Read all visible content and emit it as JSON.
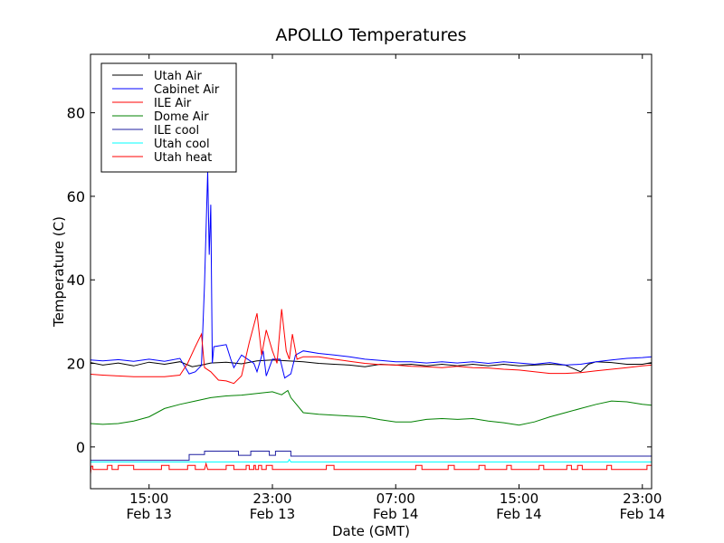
{
  "chart_data": {
    "type": "line",
    "title": "APOLLO Temperatures",
    "xlabel": "Date (GMT)",
    "ylabel": "Temperature (C)",
    "xlim": [
      11.2,
      47.6
    ],
    "ylim": [
      -10,
      94
    ],
    "yticks": [
      0,
      20,
      40,
      60,
      80
    ],
    "xticks": [
      {
        "x": 15,
        "line1": "15:00",
        "line2": "Feb 13"
      },
      {
        "x": 23,
        "line1": "23:00",
        "line2": "Feb 13"
      },
      {
        "x": 31,
        "line1": "07:00",
        "line2": "Feb 14"
      },
      {
        "x": 39,
        "line1": "15:00",
        "line2": "Feb 14"
      },
      {
        "x": 47,
        "line1": "23:00",
        "line2": "Feb 14"
      }
    ],
    "legend_position": "top-left",
    "grid": false,
    "series": [
      {
        "name": "Utah Air",
        "color": "#000000",
        "points": [
          [
            11.2,
            20.2
          ],
          [
            12,
            19.6
          ],
          [
            13,
            20.1
          ],
          [
            14,
            19.4
          ],
          [
            15,
            20.3
          ],
          [
            16,
            19.8
          ],
          [
            17,
            20.4
          ],
          [
            17.8,
            19.2
          ],
          [
            18.4,
            19.6
          ],
          [
            19,
            20.1
          ],
          [
            20,
            20.3
          ],
          [
            21,
            19.9
          ],
          [
            22,
            20.6
          ],
          [
            23,
            20.8
          ],
          [
            24,
            20.6
          ],
          [
            25,
            20.4
          ],
          [
            26,
            20.0
          ],
          [
            27,
            19.8
          ],
          [
            28,
            19.6
          ],
          [
            29,
            19.2
          ],
          [
            30,
            19.8
          ],
          [
            31,
            19.6
          ],
          [
            32,
            19.8
          ],
          [
            33,
            19.4
          ],
          [
            34,
            19.8
          ],
          [
            35,
            19.4
          ],
          [
            36,
            19.8
          ],
          [
            37,
            19.4
          ],
          [
            38,
            19.8
          ],
          [
            39,
            19.4
          ],
          [
            40,
            19.6
          ],
          [
            41,
            19.8
          ],
          [
            42,
            19.6
          ],
          [
            43,
            18.0
          ],
          [
            43.5,
            19.8
          ],
          [
            44,
            20.4
          ],
          [
            45,
            20.2
          ],
          [
            46,
            19.8
          ],
          [
            47,
            19.8
          ],
          [
            47.6,
            20.2
          ]
        ]
      },
      {
        "name": "Cabinet Air",
        "color": "#0000ff",
        "points": [
          [
            11.2,
            20.8
          ],
          [
            12,
            20.6
          ],
          [
            13,
            20.9
          ],
          [
            14,
            20.5
          ],
          [
            15,
            21.0
          ],
          [
            16,
            20.5
          ],
          [
            17,
            21.2
          ],
          [
            17.6,
            17.5
          ],
          [
            18,
            18.0
          ],
          [
            18.4,
            19.5
          ],
          [
            18.6,
            39
          ],
          [
            18.8,
            66
          ],
          [
            18.9,
            46
          ],
          [
            19.0,
            58
          ],
          [
            19.1,
            20
          ],
          [
            19.2,
            24
          ],
          [
            20,
            24.5
          ],
          [
            20.3,
            21
          ],
          [
            20.5,
            19
          ],
          [
            21,
            22
          ],
          [
            21.4,
            21
          ],
          [
            21.8,
            20
          ],
          [
            22,
            18
          ],
          [
            22.4,
            23
          ],
          [
            22.6,
            17
          ],
          [
            23,
            21
          ],
          [
            23.5,
            21
          ],
          [
            23.8,
            16.5
          ],
          [
            24.2,
            17.5
          ],
          [
            24.5,
            22
          ],
          [
            25,
            23
          ],
          [
            26,
            22.4
          ],
          [
            27,
            22.0
          ],
          [
            28,
            21.6
          ],
          [
            29,
            21.0
          ],
          [
            30,
            20.7
          ],
          [
            31,
            20.4
          ],
          [
            32,
            20.4
          ],
          [
            33,
            20.1
          ],
          [
            34,
            20.4
          ],
          [
            35,
            20.1
          ],
          [
            36,
            20.4
          ],
          [
            37,
            20.0
          ],
          [
            38,
            20.4
          ],
          [
            39,
            20.1
          ],
          [
            40,
            19.8
          ],
          [
            41,
            20.2
          ],
          [
            42,
            19.6
          ],
          [
            43,
            19.8
          ],
          [
            44,
            20.4
          ],
          [
            45,
            20.8
          ],
          [
            46,
            21.2
          ],
          [
            47,
            21.4
          ],
          [
            47.6,
            21.6
          ]
        ]
      },
      {
        "name": "ILE Air",
        "color": "#ff0000",
        "points": [
          [
            11.2,
            17.4
          ],
          [
            12,
            17.2
          ],
          [
            13,
            17.0
          ],
          [
            14,
            16.8
          ],
          [
            15,
            16.8
          ],
          [
            16,
            16.8
          ],
          [
            17,
            17.2
          ],
          [
            17.5,
            20
          ],
          [
            18,
            24
          ],
          [
            18.4,
            27
          ],
          [
            18.6,
            19
          ],
          [
            19,
            18
          ],
          [
            19.5,
            16
          ],
          [
            20,
            15.8
          ],
          [
            20.5,
            15.2
          ],
          [
            21,
            17
          ],
          [
            21.5,
            25
          ],
          [
            22,
            32
          ],
          [
            22.3,
            22
          ],
          [
            22.6,
            28
          ],
          [
            23,
            23
          ],
          [
            23.3,
            20
          ],
          [
            23.6,
            33
          ],
          [
            23.9,
            23
          ],
          [
            24.1,
            21
          ],
          [
            24.3,
            27
          ],
          [
            24.6,
            21
          ],
          [
            25,
            21.6
          ],
          [
            26,
            21.6
          ],
          [
            27,
            21.0
          ],
          [
            28,
            20.5
          ],
          [
            29,
            20.0
          ],
          [
            30,
            19.7
          ],
          [
            31,
            19.6
          ],
          [
            32,
            19.3
          ],
          [
            33,
            19.2
          ],
          [
            34,
            19.0
          ],
          [
            35,
            19.3
          ],
          [
            36,
            19.0
          ],
          [
            37,
            18.9
          ],
          [
            38,
            18.6
          ],
          [
            39,
            18.4
          ],
          [
            40,
            18.0
          ],
          [
            41,
            17.6
          ],
          [
            42,
            17.6
          ],
          [
            43,
            17.8
          ],
          [
            44,
            18.2
          ],
          [
            45,
            18.6
          ],
          [
            46,
            19.0
          ],
          [
            47,
            19.4
          ],
          [
            47.6,
            19.6
          ]
        ]
      },
      {
        "name": "Dome Air",
        "color": "#008000",
        "points": [
          [
            11.2,
            5.6
          ],
          [
            12,
            5.4
          ],
          [
            13,
            5.6
          ],
          [
            14,
            6.2
          ],
          [
            15,
            7.2
          ],
          [
            16,
            9.2
          ],
          [
            17,
            10.2
          ],
          [
            18,
            11.0
          ],
          [
            19,
            11.8
          ],
          [
            20,
            12.2
          ],
          [
            21,
            12.4
          ],
          [
            22,
            12.8
          ],
          [
            23,
            13.2
          ],
          [
            23.6,
            12.5
          ],
          [
            24,
            13.5
          ],
          [
            24.2,
            11.8
          ],
          [
            25,
            8.2
          ],
          [
            26,
            7.8
          ],
          [
            27,
            7.6
          ],
          [
            28,
            7.4
          ],
          [
            29,
            7.2
          ],
          [
            30,
            6.5
          ],
          [
            31,
            6.0
          ],
          [
            32,
            6.0
          ],
          [
            33,
            6.6
          ],
          [
            34,
            6.8
          ],
          [
            35,
            6.6
          ],
          [
            36,
            6.8
          ],
          [
            37,
            6.2
          ],
          [
            38,
            5.8
          ],
          [
            39,
            5.2
          ],
          [
            40,
            6.0
          ],
          [
            41,
            7.2
          ],
          [
            42,
            8.2
          ],
          [
            43,
            9.2
          ],
          [
            44,
            10.2
          ],
          [
            45,
            11.0
          ],
          [
            46,
            10.8
          ],
          [
            47,
            10.2
          ],
          [
            47.6,
            10.0
          ]
        ]
      },
      {
        "name": "ILE cool",
        "color": "#1f1fa0",
        "points": [
          [
            11.2,
            -3.2
          ],
          [
            17.6,
            -3.2
          ],
          [
            17.6,
            -1.8
          ],
          [
            18.6,
            -1.8
          ],
          [
            18.6,
            -1.0
          ],
          [
            20.8,
            -1.0
          ],
          [
            20.8,
            -2.0
          ],
          [
            21.6,
            -2.0
          ],
          [
            21.6,
            -1.0
          ],
          [
            22.8,
            -1.0
          ],
          [
            22.8,
            -2.0
          ],
          [
            23.2,
            -2.0
          ],
          [
            23.2,
            -1.0
          ],
          [
            24.2,
            -1.0
          ],
          [
            24.2,
            -2.2
          ],
          [
            47.6,
            -2.2
          ]
        ]
      },
      {
        "name": "Utah cool",
        "color": "#00ffff",
        "points": [
          [
            11.2,
            -3.6
          ],
          [
            24.0,
            -3.6
          ],
          [
            24.1,
            -3.0
          ],
          [
            24.2,
            -3.6
          ],
          [
            47.6,
            -3.6
          ]
        ]
      },
      {
        "name": "Utah heat",
        "color": "#ff0000",
        "points": [
          [
            11.2,
            -6.5
          ],
          [
            11.25,
            -4.6
          ],
          [
            11.35,
            -4.6
          ],
          [
            11.35,
            -5.4
          ],
          [
            12.3,
            -5.4
          ],
          [
            12.3,
            -4.4
          ],
          [
            12.6,
            -4.4
          ],
          [
            12.6,
            -5.4
          ],
          [
            13.0,
            -5.4
          ],
          [
            13.0,
            -4.4
          ],
          [
            14.0,
            -4.4
          ],
          [
            14.0,
            -5.4
          ],
          [
            15.8,
            -5.4
          ],
          [
            15.8,
            -4.4
          ],
          [
            16.3,
            -4.4
          ],
          [
            16.3,
            -5.4
          ],
          [
            17.5,
            -5.4
          ],
          [
            17.5,
            -4.4
          ],
          [
            18.0,
            -4.4
          ],
          [
            18.0,
            -5.4
          ],
          [
            18.6,
            -5.4
          ],
          [
            18.7,
            -4.0
          ],
          [
            18.8,
            -5.4
          ],
          [
            20.0,
            -5.4
          ],
          [
            20.0,
            -4.4
          ],
          [
            20.5,
            -4.4
          ],
          [
            20.5,
            -5.4
          ],
          [
            21.3,
            -5.4
          ],
          [
            21.3,
            -4.4
          ],
          [
            21.5,
            -4.4
          ],
          [
            21.5,
            -5.4
          ],
          [
            21.8,
            -5.4
          ],
          [
            21.8,
            -4.4
          ],
          [
            21.9,
            -4.4
          ],
          [
            21.9,
            -5.4
          ],
          [
            22.1,
            -5.4
          ],
          [
            22.1,
            -4.4
          ],
          [
            22.3,
            -4.4
          ],
          [
            22.3,
            -5.4
          ],
          [
            22.6,
            -5.4
          ],
          [
            22.6,
            -4.4
          ],
          [
            23.0,
            -4.4
          ],
          [
            23.0,
            -5.4
          ],
          [
            26.5,
            -5.4
          ],
          [
            26.5,
            -4.4
          ],
          [
            27.0,
            -4.4
          ],
          [
            27.0,
            -5.4
          ],
          [
            32.3,
            -5.4
          ],
          [
            32.3,
            -4.4
          ],
          [
            32.7,
            -4.4
          ],
          [
            32.7,
            -5.4
          ],
          [
            34.4,
            -5.4
          ],
          [
            34.4,
            -4.4
          ],
          [
            34.8,
            -4.4
          ],
          [
            34.8,
            -5.4
          ],
          [
            36.4,
            -5.4
          ],
          [
            36.4,
            -4.4
          ],
          [
            36.8,
            -4.4
          ],
          [
            36.8,
            -5.4
          ],
          [
            38.2,
            -5.4
          ],
          [
            38.2,
            -4.4
          ],
          [
            38.5,
            -4.4
          ],
          [
            38.5,
            -5.4
          ],
          [
            40.3,
            -5.4
          ],
          [
            40.3,
            -4.4
          ],
          [
            40.6,
            -4.4
          ],
          [
            40.6,
            -5.4
          ],
          [
            42.1,
            -5.4
          ],
          [
            42.1,
            -4.4
          ],
          [
            42.4,
            -4.4
          ],
          [
            42.4,
            -5.4
          ],
          [
            42.8,
            -5.4
          ],
          [
            42.8,
            -4.4
          ],
          [
            43.1,
            -4.4
          ],
          [
            43.1,
            -5.4
          ],
          [
            44.7,
            -5.4
          ],
          [
            44.7,
            -4.4
          ],
          [
            45.0,
            -4.4
          ],
          [
            45.0,
            -5.4
          ],
          [
            47.3,
            -5.4
          ],
          [
            47.3,
            -4.4
          ],
          [
            47.6,
            -4.4
          ]
        ]
      }
    ]
  }
}
